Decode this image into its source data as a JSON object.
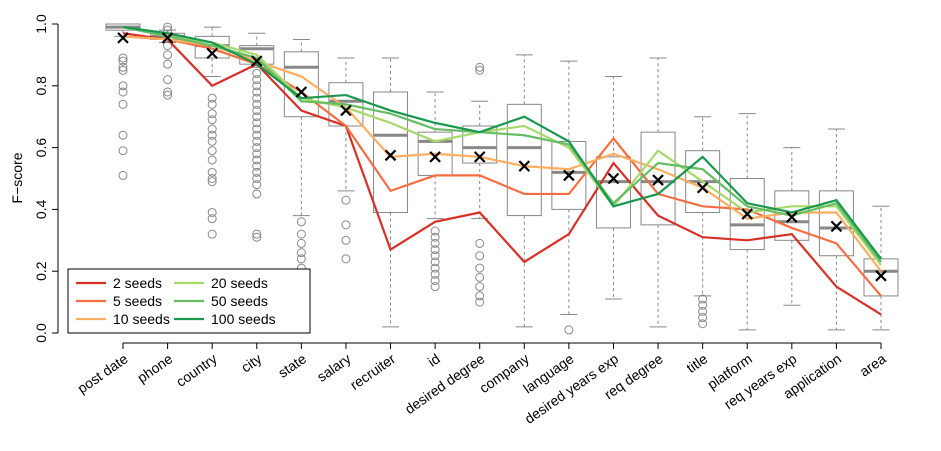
{
  "chart_data": {
    "type": "box",
    "ylabel": "F−score",
    "categories": [
      "post date",
      "phone",
      "country",
      "city",
      "state",
      "salary",
      "recruiter",
      "id",
      "desired degree",
      "company",
      "language",
      "desired years exp",
      "req degree",
      "title",
      "platform",
      "req years exp",
      "application",
      "area"
    ],
    "boxes": [
      {
        "whislo": 0.96,
        "q1": 0.98,
        "med": 0.99,
        "q3": 1.0,
        "whishi": 1.0,
        "mean": 0.955,
        "outliers": [
          0.89,
          0.88,
          0.86,
          0.85,
          0.8,
          0.78,
          0.74,
          0.64,
          0.59,
          0.51
        ]
      },
      {
        "whislo": 0.94,
        "q1": 0.95,
        "med": 0.96,
        "q3": 0.97,
        "whishi": 0.98,
        "mean": 0.955,
        "outliers": [
          0.99,
          0.98,
          0.93,
          0.9,
          0.87,
          0.82,
          0.78,
          0.77
        ]
      },
      {
        "whislo": 0.83,
        "q1": 0.89,
        "med": 0.93,
        "q3": 0.96,
        "whishi": 0.99,
        "mean": 0.905,
        "outliers": [
          0.76,
          0.74,
          0.71,
          0.69,
          0.66,
          0.64,
          0.62,
          0.59,
          0.56,
          0.52,
          0.5,
          0.49,
          0.39,
          0.37,
          0.32
        ]
      },
      {
        "whislo": 0.86,
        "q1": 0.87,
        "med": 0.92,
        "q3": 0.93,
        "whishi": 0.97,
        "mean": 0.88,
        "outliers": [
          0.84,
          0.82,
          0.8,
          0.78,
          0.76,
          0.74,
          0.72,
          0.7,
          0.68,
          0.66,
          0.64,
          0.62,
          0.6,
          0.58,
          0.56,
          0.54,
          0.52,
          0.5,
          0.48,
          0.45,
          0.32,
          0.31
        ]
      },
      {
        "whislo": 0.38,
        "q1": 0.7,
        "med": 0.86,
        "q3": 0.91,
        "whishi": 0.95,
        "mean": 0.78,
        "outliers": [
          0.36,
          0.32,
          0.29,
          0.26,
          0.24,
          0.21
        ]
      },
      {
        "whislo": 0.46,
        "q1": 0.67,
        "med": 0.75,
        "q3": 0.81,
        "whishi": 0.89,
        "mean": 0.72,
        "outliers": [
          0.43,
          0.35,
          0.3,
          0.24
        ]
      },
      {
        "whislo": 0.02,
        "q1": 0.39,
        "med": 0.64,
        "q3": 0.78,
        "whishi": 0.89,
        "mean": 0.575,
        "outliers": []
      },
      {
        "whislo": 0.37,
        "q1": 0.51,
        "med": 0.62,
        "q3": 0.65,
        "whishi": 0.78,
        "mean": 0.57,
        "outliers": [
          0.33,
          0.31,
          0.29,
          0.27,
          0.25,
          0.23,
          0.21,
          0.19,
          0.17,
          0.15
        ]
      },
      {
        "whislo": 0.37,
        "q1": 0.55,
        "med": 0.6,
        "q3": 0.67,
        "whishi": 0.75,
        "mean": 0.57,
        "outliers": [
          0.86,
          0.85,
          0.29,
          0.25,
          0.21,
          0.18,
          0.15,
          0.12,
          0.1
        ]
      },
      {
        "whislo": 0.02,
        "q1": 0.38,
        "med": 0.6,
        "q3": 0.74,
        "whishi": 0.9,
        "mean": 0.54,
        "outliers": []
      },
      {
        "whislo": 0.06,
        "q1": 0.4,
        "med": 0.52,
        "q3": 0.62,
        "whishi": 0.88,
        "mean": 0.51,
        "outliers": [
          0.01
        ]
      },
      {
        "whislo": 0.11,
        "q1": 0.34,
        "med": 0.49,
        "q3": 0.57,
        "whishi": 0.83,
        "mean": 0.5,
        "outliers": []
      },
      {
        "whislo": 0.02,
        "q1": 0.35,
        "med": 0.49,
        "q3": 0.65,
        "whishi": 0.89,
        "mean": 0.495,
        "outliers": []
      },
      {
        "whislo": 0.12,
        "q1": 0.39,
        "med": 0.49,
        "q3": 0.59,
        "whishi": 0.7,
        "mean": 0.47,
        "outliers": [
          0.11,
          0.09,
          0.07,
          0.05,
          0.03
        ]
      },
      {
        "whislo": 0.01,
        "q1": 0.27,
        "med": 0.35,
        "q3": 0.5,
        "whishi": 0.71,
        "mean": 0.385,
        "outliers": []
      },
      {
        "whislo": 0.09,
        "q1": 0.3,
        "med": 0.36,
        "q3": 0.46,
        "whishi": 0.6,
        "mean": 0.375,
        "outliers": []
      },
      {
        "whislo": 0.01,
        "q1": 0.25,
        "med": 0.34,
        "q3": 0.46,
        "whishi": 0.66,
        "mean": 0.345,
        "outliers": []
      },
      {
        "whislo": 0.01,
        "q1": 0.12,
        "med": 0.2,
        "q3": 0.24,
        "whishi": 0.41,
        "mean": 0.185,
        "outliers": []
      }
    ],
    "series": [
      {
        "name": "2 seeds",
        "color": "#d73027",
        "values": [
          0.97,
          0.95,
          0.8,
          0.87,
          0.72,
          0.67,
          0.27,
          0.36,
          0.39,
          0.23,
          0.32,
          0.55,
          0.38,
          0.31,
          0.3,
          0.32,
          0.15,
          0.06
        ]
      },
      {
        "name": "5 seeds",
        "color": "#f46d43",
        "values": [
          0.96,
          0.95,
          0.92,
          0.87,
          0.78,
          0.67,
          0.46,
          0.51,
          0.51,
          0.45,
          0.45,
          0.63,
          0.45,
          0.41,
          0.4,
          0.34,
          0.29,
          0.12
        ]
      },
      {
        "name": "10 seeds",
        "color": "#fdae61",
        "values": [
          0.96,
          0.95,
          0.93,
          0.88,
          0.83,
          0.73,
          0.57,
          0.58,
          0.57,
          0.54,
          0.53,
          0.58,
          0.53,
          0.47,
          0.37,
          0.39,
          0.39,
          0.2
        ]
      },
      {
        "name": "20 seeds",
        "color": "#a6d96a",
        "values": [
          0.99,
          0.96,
          0.94,
          0.9,
          0.76,
          0.73,
          0.68,
          0.62,
          0.65,
          0.67,
          0.6,
          0.41,
          0.59,
          0.49,
          0.39,
          0.41,
          0.41,
          0.22
        ]
      },
      {
        "name": "50 seeds",
        "color": "#66bd63",
        "values": [
          0.99,
          0.96,
          0.93,
          0.89,
          0.75,
          0.74,
          0.71,
          0.66,
          0.65,
          0.64,
          0.61,
          0.42,
          0.55,
          0.53,
          0.41,
          0.38,
          0.42,
          0.23
        ]
      },
      {
        "name": "100 seeds",
        "color": "#1a9850",
        "values": [
          0.99,
          0.97,
          0.94,
          0.87,
          0.76,
          0.77,
          0.72,
          0.68,
          0.65,
          0.7,
          0.62,
          0.41,
          0.45,
          0.57,
          0.42,
          0.39,
          0.43,
          0.24
        ]
      }
    ],
    "ylim": [
      0,
      1
    ],
    "yticks": [
      {
        "value": 0,
        "label": "0.0"
      },
      0.2,
      0.4,
      0.6,
      0.8,
      {
        "value": 1,
        "label": "1.0"
      }
    ],
    "legend": "bottom-left"
  }
}
